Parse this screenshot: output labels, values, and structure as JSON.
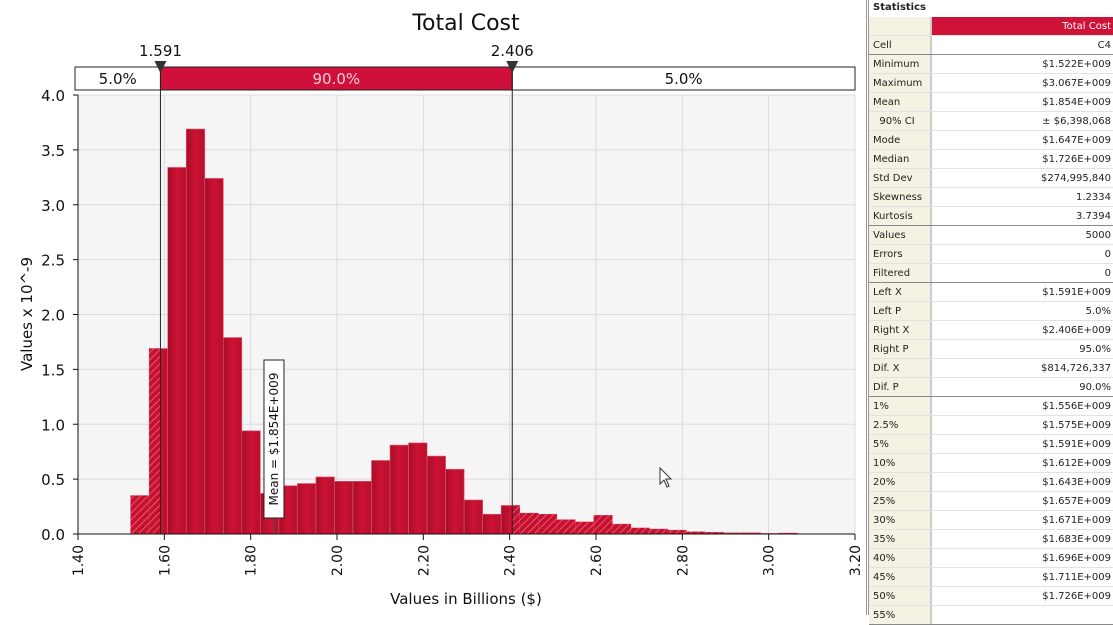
{
  "chart_data": {
    "type": "bar",
    "title": "Total Cost",
    "xlabel": "Values in Billions ($)",
    "ylabel": "Values x 10^-9",
    "xlim": [
      1.4,
      3.2
    ],
    "ylim": [
      0,
      4.0
    ],
    "x_ticks": [
      "1.40",
      "1.60",
      "1.80",
      "2.00",
      "2.20",
      "2.40",
      "2.60",
      "2.80",
      "3.00",
      "3.20"
    ],
    "y_ticks": [
      "0.0",
      "0.5",
      "1.0",
      "1.5",
      "2.0",
      "2.5",
      "3.0",
      "3.5",
      "4.0"
    ],
    "grid": true,
    "bin_start": 1.522,
    "bin_end": 3.067,
    "values": [
      0.35,
      1.69,
      3.34,
      3.69,
      3.24,
      1.79,
      0.94,
      0.37,
      0.44,
      0.46,
      0.52,
      0.48,
      0.48,
      0.67,
      0.81,
      0.83,
      0.71,
      0.59,
      0.31,
      0.18,
      0.26,
      0.19,
      0.18,
      0.13,
      0.11,
      0.17,
      0.09,
      0.055,
      0.045,
      0.035,
      0.02,
      0.015,
      0.01,
      0.01,
      0.005,
      0.008
    ],
    "color": "#c8102e",
    "delimiters": {
      "left": 1.591,
      "right": 2.406,
      "left_label": "1.591",
      "right_label": "2.406"
    },
    "probabilities": {
      "left": "5.0%",
      "middle": "90.0%",
      "right": "5.0%"
    },
    "mean_annotation": {
      "value": 1.854,
      "label": "Mean = $1.854E+009"
    }
  },
  "statistics": {
    "title": "Statistics",
    "column": "Total Cost",
    "groups": [
      [
        [
          "Cell",
          "C4"
        ]
      ],
      [
        [
          "Minimum",
          "$1.522E+009"
        ],
        [
          "Maximum",
          "$3.067E+009"
        ],
        [
          "Mean",
          "$1.854E+009"
        ],
        [
          "  90% CI",
          "± $6,398,068"
        ],
        [
          "Mode",
          "$1.647E+009"
        ],
        [
          "Median",
          "$1.726E+009"
        ],
        [
          "Std Dev",
          "$274,995,840"
        ],
        [
          "Skewness",
          "1.2334"
        ],
        [
          "Kurtosis",
          "3.7394"
        ]
      ],
      [
        [
          "Values",
          "5000"
        ],
        [
          "Errors",
          "0"
        ],
        [
          "Filtered",
          "0"
        ]
      ],
      [
        [
          "Left X",
          "$1.591E+009"
        ],
        [
          "Left P",
          "5.0%"
        ],
        [
          "Right X",
          "$2.406E+009"
        ],
        [
          "Right P",
          "95.0%"
        ],
        [
          "Dif. X",
          "$814,726,337"
        ],
        [
          "Dif. P",
          "90.0%"
        ]
      ],
      [
        [
          "1%",
          "$1.556E+009"
        ],
        [
          "2.5%",
          "$1.575E+009"
        ],
        [
          "5%",
          "$1.591E+009"
        ],
        [
          "10%",
          "$1.612E+009"
        ],
        [
          "20%",
          "$1.643E+009"
        ],
        [
          "25%",
          "$1.657E+009"
        ],
        [
          "30%",
          "$1.671E+009"
        ],
        [
          "35%",
          "$1.683E+009"
        ],
        [
          "40%",
          "$1.696E+009"
        ],
        [
          "45%",
          "$1.711E+009"
        ],
        [
          "50%",
          "$1.726E+009"
        ],
        [
          "55%",
          ""
        ]
      ]
    ]
  }
}
